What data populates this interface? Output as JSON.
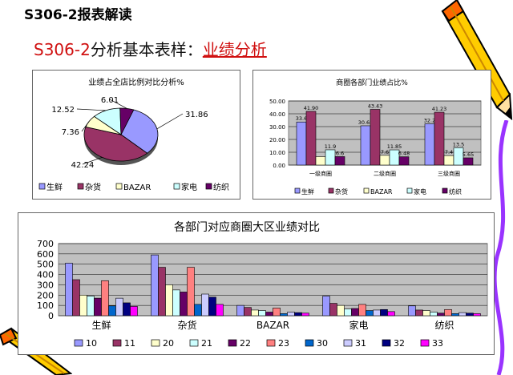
{
  "header": {
    "title": "S306-2报表解读",
    "subtitle_code": "S306-2",
    "subtitle_text": "分析基本表样：",
    "subtitle_link": "业绩分析"
  },
  "colors": {
    "sx": "#9999ff",
    "zh": "#993366",
    "bz": "#ffffcc",
    "jd": "#ccffff",
    "fz": "#660066",
    "s10": "#9999ff",
    "s11": "#993366",
    "s20": "#ffffcc",
    "s21": "#ccffff",
    "s22": "#660066",
    "s23": "#ff8080",
    "s30": "#0066cc",
    "s31": "#ccccff",
    "s32": "#000080",
    "s33": "#ff00ff",
    "plot_bg": "#c0c0c0"
  },
  "chart_data": [
    {
      "type": "pie",
      "title": "业绩占全店比例对比分析%",
      "categories": [
        "生鲜",
        "杂货",
        "BAZAR",
        "家电",
        "纺织"
      ],
      "values": [
        31.86,
        42.24,
        7.36,
        12.52,
        6.01
      ],
      "labels": [
        "31.86",
        "42.24",
        "7.36",
        "12.52",
        "6.01"
      ],
      "legend": "bottom"
    },
    {
      "type": "bar",
      "title": "商圈各部门业绩占比%",
      "categories": [
        "一级商圈",
        "二级商圈",
        "三级商圈"
      ],
      "series": [
        {
          "name": "生鲜",
          "values": [
            33.6,
            30.65,
            32.2
          ],
          "labels": [
            "33.6",
            "30.65",
            "32.2"
          ]
        },
        {
          "name": "杂货",
          "values": [
            41.9,
            43.43,
            41.23
          ],
          "labels": [
            "41.90",
            "43.43",
            "41.23"
          ]
        },
        {
          "name": "BAZAR",
          "values": [
            6.6,
            7.6,
            7.4
          ],
          "labels": [
            "",
            "7.6",
            "7.4"
          ]
        },
        {
          "name": "家电",
          "values": [
            11.9,
            11.85,
            13.5
          ],
          "labels": [
            "11.9",
            "11.85",
            "13.5"
          ]
        },
        {
          "name": "纺织",
          "values": [
            6.6,
            6.48,
            5.65
          ],
          "labels": [
            "6.6",
            "6.48",
            "5.65"
          ]
        }
      ],
      "yticks": [
        "50.00",
        "40.00",
        "30.00",
        "20.00",
        "10.00",
        "0.00"
      ],
      "ylim": [
        0,
        50
      ],
      "grid": true,
      "legend": "bottom"
    },
    {
      "type": "bar",
      "title": "各部门对应商圈大区业绩对比",
      "categories": [
        "生鲜",
        "杂货",
        "BAZAR",
        "家电",
        "纺织"
      ],
      "series": [
        {
          "name": "10",
          "values": [
            510,
            590,
            100,
            190,
            95
          ]
        },
        {
          "name": "11",
          "values": [
            350,
            470,
            80,
            120,
            55
          ]
        },
        {
          "name": "20",
          "values": [
            200,
            300,
            55,
            100,
            50
          ]
        },
        {
          "name": "21",
          "values": [
            190,
            250,
            50,
            65,
            35
          ]
        },
        {
          "name": "22",
          "values": [
            170,
            230,
            35,
            70,
            25
          ]
        },
        {
          "name": "23",
          "values": [
            340,
            470,
            75,
            110,
            60
          ]
        },
        {
          "name": "30",
          "values": [
            95,
            110,
            20,
            50,
            20
          ]
        },
        {
          "name": "31",
          "values": [
            170,
            210,
            35,
            55,
            30
          ]
        },
        {
          "name": "32",
          "values": [
            125,
            180,
            30,
            60,
            25
          ]
        },
        {
          "name": "33",
          "values": [
            90,
            110,
            25,
            40,
            20
          ]
        }
      ],
      "yticks": [
        "700",
        "600",
        "500",
        "400",
        "300",
        "200",
        "100",
        "0"
      ],
      "ylim": [
        0,
        700
      ],
      "grid": true,
      "legend": "bottom"
    }
  ]
}
